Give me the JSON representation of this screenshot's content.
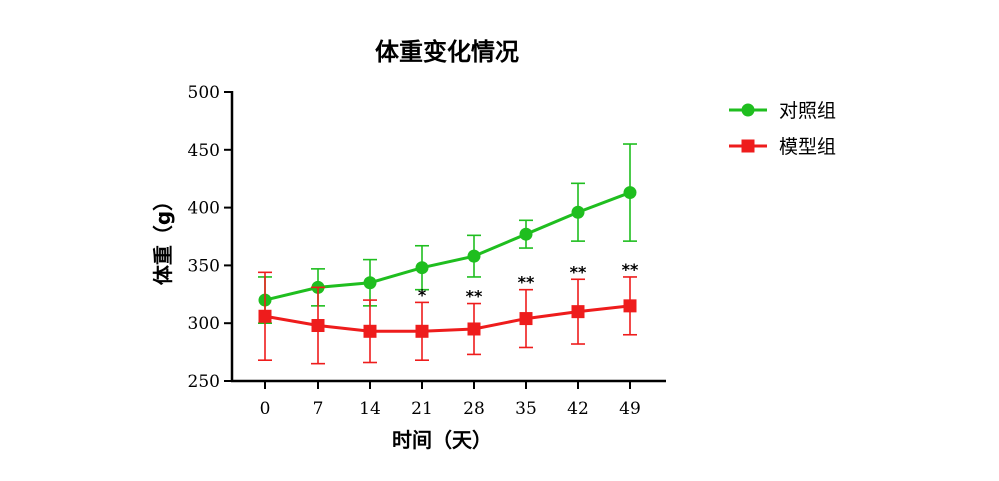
{
  "chart_data": {
    "type": "line",
    "title": "体重变化情况",
    "xlabel": "时间（天）",
    "ylabel": "体重（g）",
    "x": [
      0,
      7,
      14,
      21,
      28,
      35,
      42,
      49
    ],
    "x_tick_labels": [
      "0",
      "7",
      "14",
      "21",
      "28",
      "35",
      "42",
      "49"
    ],
    "ylim": [
      250,
      500
    ],
    "y_ticks": [
      250,
      300,
      350,
      400,
      450,
      500
    ],
    "y_tick_labels": [
      "250",
      "300",
      "350",
      "400",
      "450",
      "500"
    ],
    "grid": false,
    "legend_position": "top-right",
    "series": [
      {
        "name": "对照组",
        "color": "#1fbe1f",
        "marker": "circle",
        "values": [
          320,
          331,
          335,
          348,
          358,
          377,
          396,
          413
        ],
        "error": [
          20,
          16,
          20,
          19,
          18,
          12,
          25,
          42
        ]
      },
      {
        "name": "模型组",
        "color": "#ee1c1c",
        "marker": "square",
        "values": [
          306,
          298,
          293,
          293,
          295,
          304,
          310,
          315
        ],
        "error": [
          38,
          33,
          27,
          25,
          22,
          25,
          28,
          25
        ]
      }
    ],
    "annotations": [
      {
        "x": 21,
        "label": "*"
      },
      {
        "x": 28,
        "label": "**"
      },
      {
        "x": 35,
        "label": "**"
      },
      {
        "x": 42,
        "label": "**"
      },
      {
        "x": 49,
        "label": "**"
      }
    ]
  }
}
